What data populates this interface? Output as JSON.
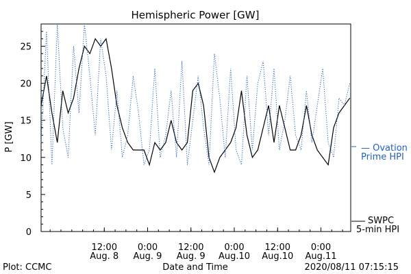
{
  "chart_data": {
    "type": "line",
    "title": "Hemispheric Power [GW]",
    "ylabel": "P [GW]",
    "xlabel": "Date and Time",
    "ylim": [
      0,
      28
    ],
    "xlim": [
      "2020-08-07T18:30",
      "2020-08-11T08:15"
    ],
    "yticks": [
      0,
      5,
      10,
      15,
      20,
      25
    ],
    "xticks": [
      {
        "time": "2020-08-08T12:00",
        "line1": "12:00",
        "line2": "Aug. 8"
      },
      {
        "time": "2020-08-09T00:00",
        "line1": "0:00",
        "line2": "Aug. 9"
      },
      {
        "time": "2020-08-09T12:00",
        "line1": "12:00",
        "line2": "Aug. 9"
      },
      {
        "time": "2020-08-10T00:00",
        "line1": "0:00",
        "line2": "Aug.10"
      },
      {
        "time": "2020-08-10T12:00",
        "line1": "12:00",
        "line2": "Aug.10"
      },
      {
        "time": "2020-08-11T00:00",
        "line1": "0:00",
        "line2": "Aug.11"
      }
    ],
    "series": [
      {
        "name": "SWPC 5-min HPI",
        "color": "#000000",
        "style": "solid",
        "legend_line1": "SWPC",
        "legend_line2": "5-min HPI",
        "x": [
          "2020-08-07T18:30",
          "2020-08-07T20:00",
          "2020-08-07T21:30",
          "2020-08-07T23:00",
          "2020-08-08T00:30",
          "2020-08-08T02:00",
          "2020-08-08T03:30",
          "2020-08-08T05:00",
          "2020-08-08T06:30",
          "2020-08-08T08:00",
          "2020-08-08T09:30",
          "2020-08-08T11:00",
          "2020-08-08T12:30",
          "2020-08-08T14:00",
          "2020-08-08T15:30",
          "2020-08-08T17:00",
          "2020-08-08T18:30",
          "2020-08-08T20:00",
          "2020-08-08T21:30",
          "2020-08-08T23:00",
          "2020-08-09T00:30",
          "2020-08-09T02:00",
          "2020-08-09T03:30",
          "2020-08-09T05:00",
          "2020-08-09T06:30",
          "2020-08-09T08:00",
          "2020-08-09T09:30",
          "2020-08-09T11:00",
          "2020-08-09T12:30",
          "2020-08-09T14:00",
          "2020-08-09T15:30",
          "2020-08-09T17:00",
          "2020-08-09T18:30",
          "2020-08-09T20:00",
          "2020-08-09T21:30",
          "2020-08-09T23:00",
          "2020-08-10T00:30",
          "2020-08-10T02:00",
          "2020-08-10T03:30",
          "2020-08-10T05:00",
          "2020-08-10T06:30",
          "2020-08-10T08:00",
          "2020-08-10T09:30",
          "2020-08-10T11:00",
          "2020-08-10T12:30",
          "2020-08-10T14:00",
          "2020-08-10T15:30",
          "2020-08-10T17:00",
          "2020-08-10T18:30",
          "2020-08-10T20:00",
          "2020-08-10T21:30",
          "2020-08-10T23:00",
          "2020-08-11T00:30",
          "2020-08-11T02:00",
          "2020-08-11T03:30",
          "2020-08-11T05:00",
          "2020-08-11T06:30",
          "2020-08-11T08:00"
        ],
        "values": [
          17,
          21,
          16,
          12,
          19,
          16,
          18,
          22,
          25,
          24,
          26,
          25,
          26,
          22,
          17,
          14,
          12,
          11,
          11,
          11,
          9,
          12,
          11,
          12,
          15,
          12,
          11,
          12,
          19,
          20,
          17,
          10,
          8,
          10,
          11,
          12,
          14,
          19,
          13,
          10,
          11,
          14,
          17,
          12,
          17,
          14,
          11,
          11,
          13,
          17,
          13,
          11,
          10,
          9,
          14,
          16,
          17,
          18
        ]
      },
      {
        "name": "Ovation Prime HPI",
        "color": "#1f5fbf",
        "style": "dotted",
        "legend_line1": "— Ovation",
        "legend_line2": "Prime HPI",
        "x": [
          "2020-08-07T18:30",
          "2020-08-07T20:00",
          "2020-08-07T21:30",
          "2020-08-07T23:00",
          "2020-08-08T00:30",
          "2020-08-08T02:00",
          "2020-08-08T03:30",
          "2020-08-08T05:00",
          "2020-08-08T06:30",
          "2020-08-08T08:00",
          "2020-08-08T09:30",
          "2020-08-08T11:00",
          "2020-08-08T12:30",
          "2020-08-08T14:00",
          "2020-08-08T15:30",
          "2020-08-08T17:00",
          "2020-08-08T18:30",
          "2020-08-08T20:00",
          "2020-08-08T21:30",
          "2020-08-08T23:00",
          "2020-08-09T00:30",
          "2020-08-09T02:00",
          "2020-08-09T03:30",
          "2020-08-09T05:00",
          "2020-08-09T06:30",
          "2020-08-09T08:00",
          "2020-08-09T09:30",
          "2020-08-09T11:00",
          "2020-08-09T12:30",
          "2020-08-09T14:00",
          "2020-08-09T15:30",
          "2020-08-09T17:00",
          "2020-08-09T18:30",
          "2020-08-09T20:00",
          "2020-08-09T21:30",
          "2020-08-09T23:00",
          "2020-08-10T00:30",
          "2020-08-10T02:00",
          "2020-08-10T03:30",
          "2020-08-10T05:00",
          "2020-08-10T06:30",
          "2020-08-10T08:00",
          "2020-08-10T09:30",
          "2020-08-10T11:00",
          "2020-08-10T12:30",
          "2020-08-10T14:00",
          "2020-08-10T15:30",
          "2020-08-10T17:00",
          "2020-08-10T18:30",
          "2020-08-10T20:00",
          "2020-08-10T21:30",
          "2020-08-10T23:00",
          "2020-08-11T00:30",
          "2020-08-11T02:00",
          "2020-08-11T03:30",
          "2020-08-11T05:00",
          "2020-08-11T06:30",
          "2020-08-11T08:00"
        ],
        "values": [
          12,
          27,
          9,
          28,
          14,
          10,
          25,
          16,
          28,
          21,
          13,
          26,
          21,
          11,
          19,
          10,
          13,
          21,
          16,
          9,
          11,
          22,
          10,
          13,
          19,
          10,
          23,
          9,
          15,
          21,
          14,
          9,
          24,
          18,
          10,
          22,
          11,
          9,
          21,
          11,
          20,
          23,
          13,
          22,
          11,
          15,
          21,
          13,
          11,
          19,
          12,
          17,
          22,
          12,
          10,
          18,
          17,
          20
        ]
      }
    ],
    "grid": false
  },
  "footer": {
    "plot_credit": "Plot: CCMC",
    "timestamp": "2020/08/11 07:15:15"
  }
}
